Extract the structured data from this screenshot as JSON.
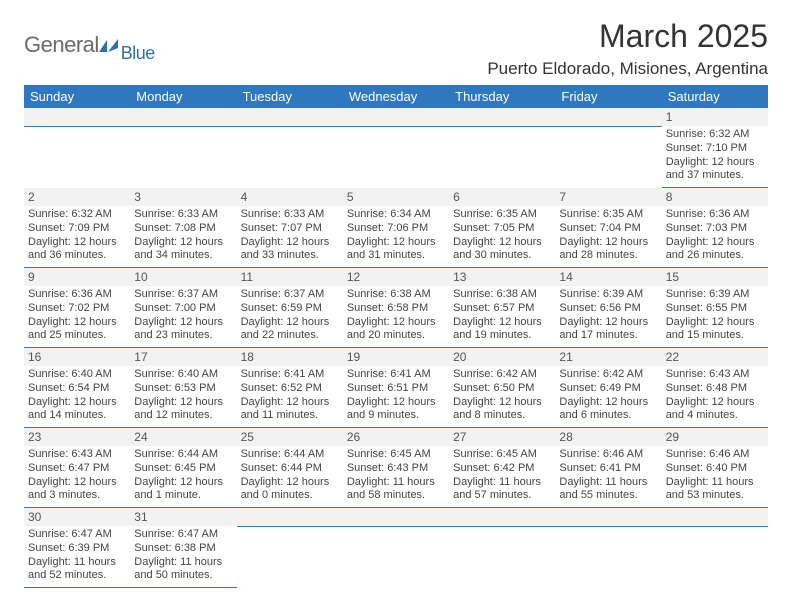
{
  "brand": {
    "gray": "General",
    "blue": "Blue"
  },
  "title": "March 2025",
  "location": "Puerto Eldorado, Misiones, Argentina",
  "colors": {
    "header_bg": "#2f78bf",
    "header_fg": "#ffffff",
    "daynum_bg": "#f2f2f2",
    "rule": "#2f78bf",
    "text": "#333333",
    "logo_gray": "#6b6b6b",
    "logo_blue": "#2f6faf"
  },
  "weekdays": [
    "Sunday",
    "Monday",
    "Tuesday",
    "Wednesday",
    "Thursday",
    "Friday",
    "Saturday"
  ],
  "weeks": [
    [
      null,
      null,
      null,
      null,
      null,
      null,
      {
        "n": "1",
        "sr": "Sunrise: 6:32 AM",
        "ss": "Sunset: 7:10 PM",
        "dl": "Daylight: 12 hours and 37 minutes."
      }
    ],
    [
      {
        "n": "2",
        "sr": "Sunrise: 6:32 AM",
        "ss": "Sunset: 7:09 PM",
        "dl": "Daylight: 12 hours and 36 minutes."
      },
      {
        "n": "3",
        "sr": "Sunrise: 6:33 AM",
        "ss": "Sunset: 7:08 PM",
        "dl": "Daylight: 12 hours and 34 minutes."
      },
      {
        "n": "4",
        "sr": "Sunrise: 6:33 AM",
        "ss": "Sunset: 7:07 PM",
        "dl": "Daylight: 12 hours and 33 minutes."
      },
      {
        "n": "5",
        "sr": "Sunrise: 6:34 AM",
        "ss": "Sunset: 7:06 PM",
        "dl": "Daylight: 12 hours and 31 minutes."
      },
      {
        "n": "6",
        "sr": "Sunrise: 6:35 AM",
        "ss": "Sunset: 7:05 PM",
        "dl": "Daylight: 12 hours and 30 minutes."
      },
      {
        "n": "7",
        "sr": "Sunrise: 6:35 AM",
        "ss": "Sunset: 7:04 PM",
        "dl": "Daylight: 12 hours and 28 minutes."
      },
      {
        "n": "8",
        "sr": "Sunrise: 6:36 AM",
        "ss": "Sunset: 7:03 PM",
        "dl": "Daylight: 12 hours and 26 minutes."
      }
    ],
    [
      {
        "n": "9",
        "sr": "Sunrise: 6:36 AM",
        "ss": "Sunset: 7:02 PM",
        "dl": "Daylight: 12 hours and 25 minutes."
      },
      {
        "n": "10",
        "sr": "Sunrise: 6:37 AM",
        "ss": "Sunset: 7:00 PM",
        "dl": "Daylight: 12 hours and 23 minutes."
      },
      {
        "n": "11",
        "sr": "Sunrise: 6:37 AM",
        "ss": "Sunset: 6:59 PM",
        "dl": "Daylight: 12 hours and 22 minutes."
      },
      {
        "n": "12",
        "sr": "Sunrise: 6:38 AM",
        "ss": "Sunset: 6:58 PM",
        "dl": "Daylight: 12 hours and 20 minutes."
      },
      {
        "n": "13",
        "sr": "Sunrise: 6:38 AM",
        "ss": "Sunset: 6:57 PM",
        "dl": "Daylight: 12 hours and 19 minutes."
      },
      {
        "n": "14",
        "sr": "Sunrise: 6:39 AM",
        "ss": "Sunset: 6:56 PM",
        "dl": "Daylight: 12 hours and 17 minutes."
      },
      {
        "n": "15",
        "sr": "Sunrise: 6:39 AM",
        "ss": "Sunset: 6:55 PM",
        "dl": "Daylight: 12 hours and 15 minutes."
      }
    ],
    [
      {
        "n": "16",
        "sr": "Sunrise: 6:40 AM",
        "ss": "Sunset: 6:54 PM",
        "dl": "Daylight: 12 hours and 14 minutes."
      },
      {
        "n": "17",
        "sr": "Sunrise: 6:40 AM",
        "ss": "Sunset: 6:53 PM",
        "dl": "Daylight: 12 hours and 12 minutes."
      },
      {
        "n": "18",
        "sr": "Sunrise: 6:41 AM",
        "ss": "Sunset: 6:52 PM",
        "dl": "Daylight: 12 hours and 11 minutes."
      },
      {
        "n": "19",
        "sr": "Sunrise: 6:41 AM",
        "ss": "Sunset: 6:51 PM",
        "dl": "Daylight: 12 hours and 9 minutes."
      },
      {
        "n": "20",
        "sr": "Sunrise: 6:42 AM",
        "ss": "Sunset: 6:50 PM",
        "dl": "Daylight: 12 hours and 8 minutes."
      },
      {
        "n": "21",
        "sr": "Sunrise: 6:42 AM",
        "ss": "Sunset: 6:49 PM",
        "dl": "Daylight: 12 hours and 6 minutes."
      },
      {
        "n": "22",
        "sr": "Sunrise: 6:43 AM",
        "ss": "Sunset: 6:48 PM",
        "dl": "Daylight: 12 hours and 4 minutes."
      }
    ],
    [
      {
        "n": "23",
        "sr": "Sunrise: 6:43 AM",
        "ss": "Sunset: 6:47 PM",
        "dl": "Daylight: 12 hours and 3 minutes."
      },
      {
        "n": "24",
        "sr": "Sunrise: 6:44 AM",
        "ss": "Sunset: 6:45 PM",
        "dl": "Daylight: 12 hours and 1 minute."
      },
      {
        "n": "25",
        "sr": "Sunrise: 6:44 AM",
        "ss": "Sunset: 6:44 PM",
        "dl": "Daylight: 12 hours and 0 minutes."
      },
      {
        "n": "26",
        "sr": "Sunrise: 6:45 AM",
        "ss": "Sunset: 6:43 PM",
        "dl": "Daylight: 11 hours and 58 minutes."
      },
      {
        "n": "27",
        "sr": "Sunrise: 6:45 AM",
        "ss": "Sunset: 6:42 PM",
        "dl": "Daylight: 11 hours and 57 minutes."
      },
      {
        "n": "28",
        "sr": "Sunrise: 6:46 AM",
        "ss": "Sunset: 6:41 PM",
        "dl": "Daylight: 11 hours and 55 minutes."
      },
      {
        "n": "29",
        "sr": "Sunrise: 6:46 AM",
        "ss": "Sunset: 6:40 PM",
        "dl": "Daylight: 11 hours and 53 minutes."
      }
    ],
    [
      {
        "n": "30",
        "sr": "Sunrise: 6:47 AM",
        "ss": "Sunset: 6:39 PM",
        "dl": "Daylight: 11 hours and 52 minutes."
      },
      {
        "n": "31",
        "sr": "Sunrise: 6:47 AM",
        "ss": "Sunset: 6:38 PM",
        "dl": "Daylight: 11 hours and 50 minutes."
      },
      null,
      null,
      null,
      null,
      null
    ]
  ]
}
